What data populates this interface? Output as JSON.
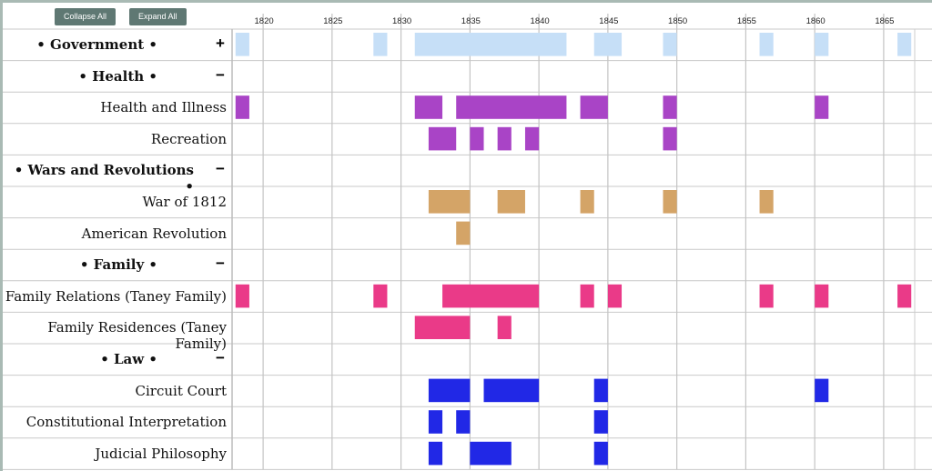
{
  "buttons": {
    "collapse": "Collapse All",
    "expand": "Expand All"
  },
  "chart_data": {
    "type": "timeline",
    "xlim": [
      1817.75,
      1867.25
    ],
    "ticks": [
      "1820",
      "1825",
      "1830",
      "1835",
      "1840",
      "1845",
      "1850",
      "1855",
      "1860",
      "1865"
    ],
    "grid": true,
    "rows": [
      {
        "label": "• Government •",
        "group": true,
        "toggle": "+",
        "color": "#c6dff7",
        "spans": [
          [
            1818,
            1819
          ],
          [
            1828,
            1829
          ],
          [
            1831,
            1842
          ],
          [
            1844,
            1846
          ],
          [
            1849,
            1850
          ],
          [
            1856,
            1857
          ],
          [
            1860,
            1861
          ],
          [
            1866,
            1867
          ]
        ]
      },
      {
        "label": "• Health •",
        "group": true,
        "toggle": "−",
        "color": "#a944c6",
        "spans": []
      },
      {
        "label": "Health and Illness",
        "group": false,
        "color": "#a944c6",
        "spans": [
          [
            1818,
            1819
          ],
          [
            1831,
            1833
          ],
          [
            1834,
            1842
          ],
          [
            1843,
            1845
          ],
          [
            1849,
            1850
          ],
          [
            1860,
            1861
          ]
        ]
      },
      {
        "label": "Recreation",
        "group": false,
        "color": "#a944c6",
        "spans": [
          [
            1832,
            1834
          ],
          [
            1835,
            1836
          ],
          [
            1837,
            1838
          ],
          [
            1839,
            1840
          ],
          [
            1849,
            1850
          ]
        ]
      },
      {
        "label": "• Wars and Revolutions •",
        "group": true,
        "toggle": "−",
        "color": "#d4a467",
        "spans": []
      },
      {
        "label": "War of 1812",
        "group": false,
        "color": "#d4a467",
        "spans": [
          [
            1832,
            1835
          ],
          [
            1837,
            1839
          ],
          [
            1843,
            1844
          ],
          [
            1849,
            1850
          ],
          [
            1856,
            1857
          ]
        ]
      },
      {
        "label": "American Revolution",
        "group": false,
        "color": "#d4a467",
        "spans": [
          [
            1834,
            1835
          ]
        ]
      },
      {
        "label": "• Family •",
        "group": true,
        "toggle": "−",
        "color": "#ea3a88",
        "spans": []
      },
      {
        "label": "Family Relations (Taney Family)",
        "group": false,
        "color": "#ea3a88",
        "spans": [
          [
            1818,
            1819
          ],
          [
            1828,
            1829
          ],
          [
            1833,
            1840
          ],
          [
            1843,
            1844
          ],
          [
            1845,
            1846
          ],
          [
            1856,
            1857
          ],
          [
            1860,
            1861
          ],
          [
            1866,
            1867
          ]
        ]
      },
      {
        "label": "Family Residences (Taney Family)",
        "group": false,
        "color": "#ea3a88",
        "spans": [
          [
            1831,
            1835
          ],
          [
            1837,
            1838
          ]
        ]
      },
      {
        "label": "• Law •",
        "group": true,
        "toggle": "−",
        "color": "#2128e6",
        "spans": []
      },
      {
        "label": "Circuit Court",
        "group": false,
        "color": "#2128e6",
        "spans": [
          [
            1832,
            1835
          ],
          [
            1836,
            1840
          ],
          [
            1844,
            1845
          ],
          [
            1860,
            1861
          ]
        ]
      },
      {
        "label": "Constitutional Interpretation",
        "group": false,
        "color": "#2128e6",
        "spans": [
          [
            1832,
            1833
          ],
          [
            1834,
            1835
          ],
          [
            1844,
            1845
          ]
        ]
      },
      {
        "label": "Judicial Philosophy",
        "group": false,
        "color": "#2128e6",
        "spans": [
          [
            1832,
            1833
          ],
          [
            1835,
            1838
          ],
          [
            1844,
            1845
          ]
        ]
      }
    ]
  }
}
